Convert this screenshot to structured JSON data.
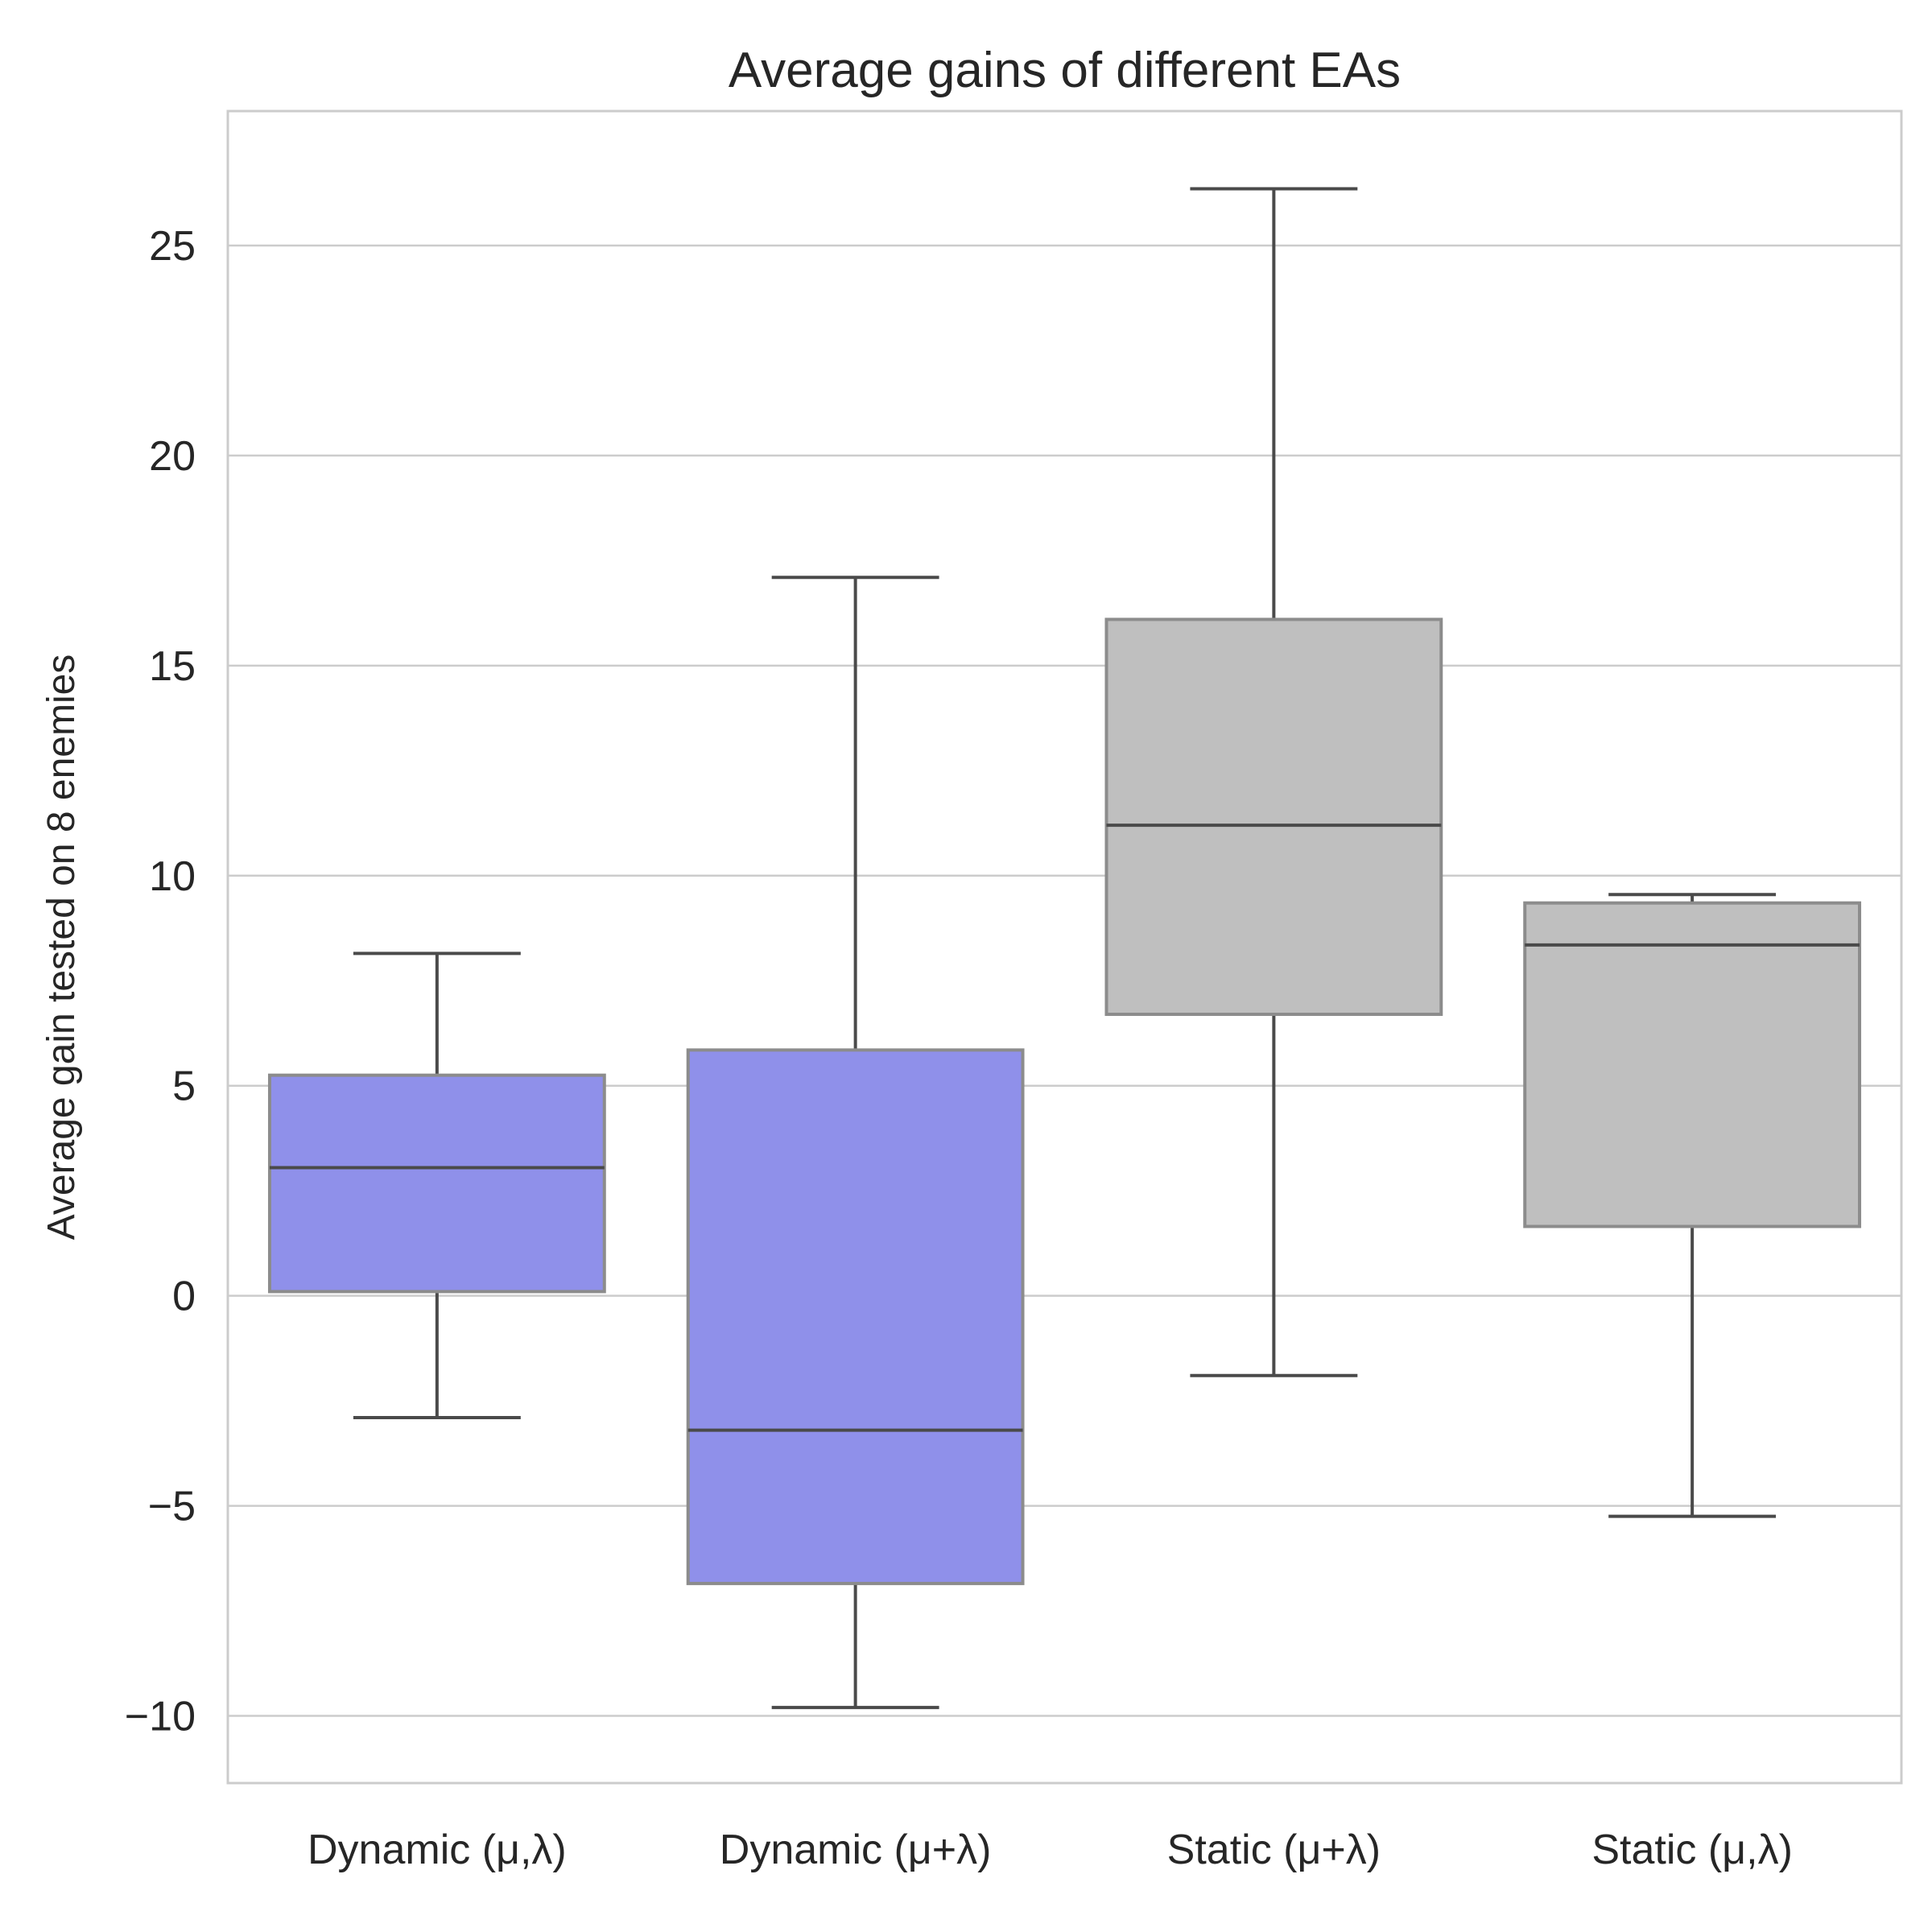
{
  "chart_data": {
    "type": "box",
    "title": "Average gains of different EAs",
    "xlabel": "",
    "ylabel": "Average gain tested on 8 enemies",
    "ylim": [
      -11.6,
      28.2
    ],
    "yticks": [
      -10,
      -5,
      0,
      5,
      10,
      15,
      20,
      25
    ],
    "ytick_labels": [
      "−10",
      "−5",
      "0",
      "5",
      "10",
      "15",
      "20",
      "25"
    ],
    "grid": true,
    "categories": [
      "Dynamic (μ,λ)",
      "Dynamic (μ+λ)",
      "Static (μ+λ)",
      "Static (μ,λ)"
    ],
    "boxes": [
      {
        "label": "Dynamic (μ,λ)",
        "whisker_low": -2.9,
        "q1": 0.1,
        "median": 3.05,
        "q3": 5.25,
        "whisker_high": 8.15,
        "color": "#8f90ea"
      },
      {
        "label": "Dynamic (μ+λ)",
        "whisker_low": -9.8,
        "q1": -6.85,
        "median": -3.2,
        "q3": 5.85,
        "whisker_high": 17.1,
        "color": "#8f90ea"
      },
      {
        "label": "Static (μ+λ)",
        "whisker_low": -1.9,
        "q1": 6.7,
        "median": 11.2,
        "q3": 16.1,
        "whisker_high": 26.35,
        "color": "#bfbfbf"
      },
      {
        "label": "Static (μ,λ)",
        "whisker_low": -5.25,
        "q1": 1.65,
        "median": 8.35,
        "q3": 9.35,
        "whisker_high": 9.55,
        "color": "#bfbfbf"
      }
    ]
  }
}
